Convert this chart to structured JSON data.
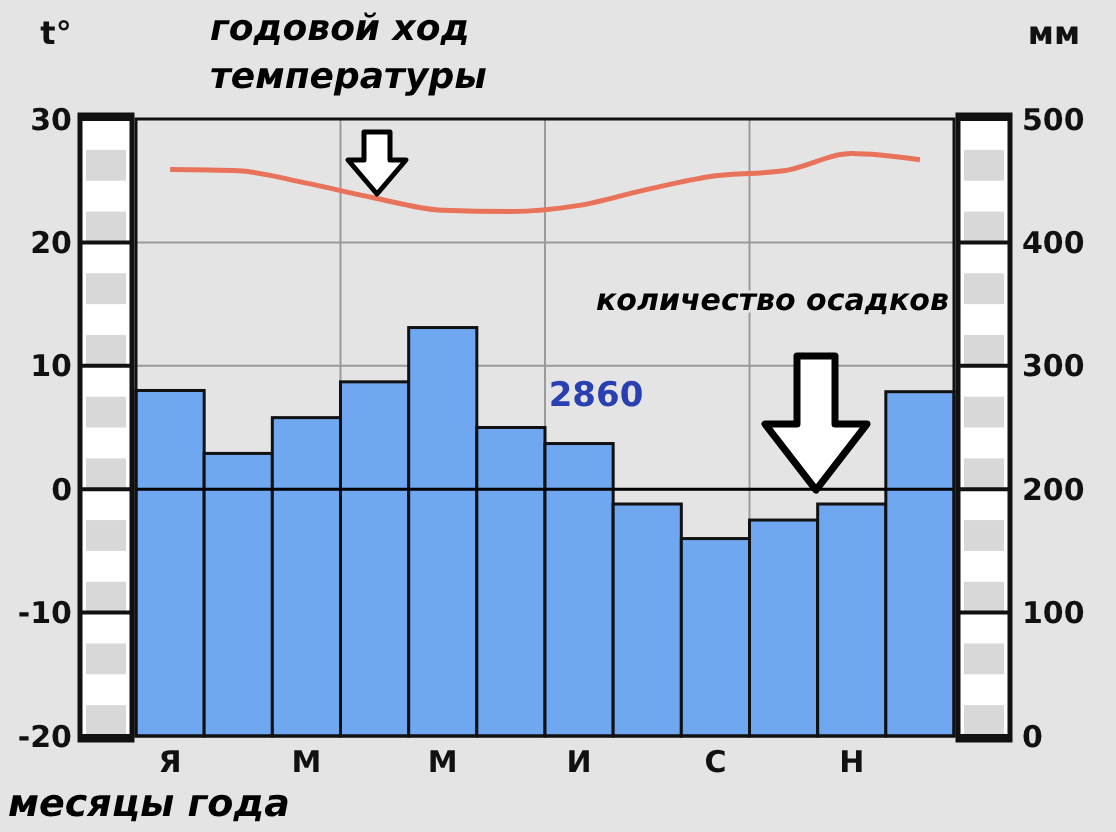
{
  "chart_data": {
    "type": "bar",
    "ylabel": "t°",
    "y2label": "мм",
    "xlabel": "месяцы года",
    "categories": [
      "Я",
      null,
      "М",
      null,
      "М",
      null,
      "И",
      null,
      "С",
      null,
      "Н",
      null
    ],
    "series": [
      {
        "axis": "y2",
        "color": "#6fa8f0",
        "values": [
          280,
          229,
          258,
          287,
          331,
          250,
          237,
          188,
          160,
          175,
          188,
          279
        ]
      },
      {
        "type": "line",
        "axis": "y",
        "color": "#e8735a",
        "values": [
          25.9,
          25.8,
          24.8,
          23.6,
          22.6,
          22.5,
          23.0,
          24.3,
          25.4,
          25.8,
          27.2,
          26.7
        ]
      }
    ],
    "ylim": [
      -20,
      30
    ],
    "yticks": [
      -20,
      -10,
      0,
      10,
      20,
      30
    ],
    "y2lim": [
      0,
      500
    ],
    "y2ticks": [
      0,
      100,
      200,
      300,
      400,
      500
    ],
    "grid": true,
    "marker": "none",
    "ref_lines": [
      {
        "axis": "y",
        "value": 0,
        "color": "#000000"
      }
    ],
    "annotations": [
      "годовой ход\nтемпературы",
      "количество осадков",
      "2860"
    ]
  }
}
